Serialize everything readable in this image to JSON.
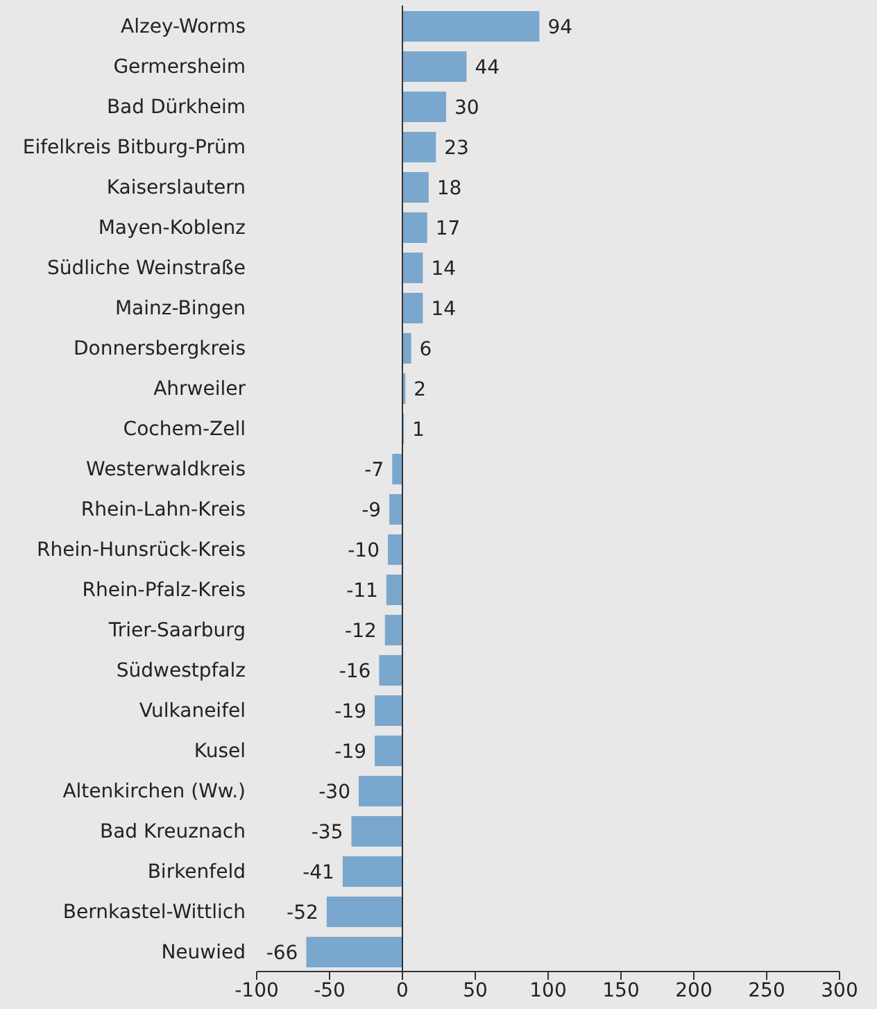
{
  "chart_data": {
    "type": "bar",
    "orientation": "horizontal",
    "categories": [
      "Alzey-Worms",
      "Germersheim",
      "Bad Dürkheim",
      "Eifelkreis Bitburg-Prüm",
      "Kaiserslautern",
      "Mayen-Koblenz",
      "Südliche Weinstraße",
      "Mainz-Bingen",
      "Donnersbergkreis",
      "Ahrweiler",
      "Cochem-Zell",
      "Westerwaldkreis",
      "Rhein-Lahn-Kreis",
      "Rhein-Hunsrück-Kreis",
      "Rhein-Pfalz-Kreis",
      "Trier-Saarburg",
      "Südwestpfalz",
      "Vulkaneifel",
      "Kusel",
      "Altenkirchen (Ww.)",
      "Bad Kreuznach",
      "Birkenfeld",
      "Bernkastel-Wittlich",
      "Neuwied"
    ],
    "values": [
      94,
      44,
      30,
      23,
      18,
      17,
      14,
      14,
      6,
      2,
      1,
      -7,
      -9,
      -10,
      -11,
      -12,
      -16,
      -19,
      -19,
      -30,
      -35,
      -41,
      -52,
      -66
    ],
    "color": "#7aa7cd",
    "xlim": [
      -100,
      300
    ],
    "xticks": [
      -100,
      -50,
      0,
      50,
      100,
      150,
      200,
      250,
      300
    ],
    "data_labels": true,
    "ref_lines": [
      {
        "axis": "x",
        "value": 0,
        "color": "#333333"
      }
    ]
  }
}
